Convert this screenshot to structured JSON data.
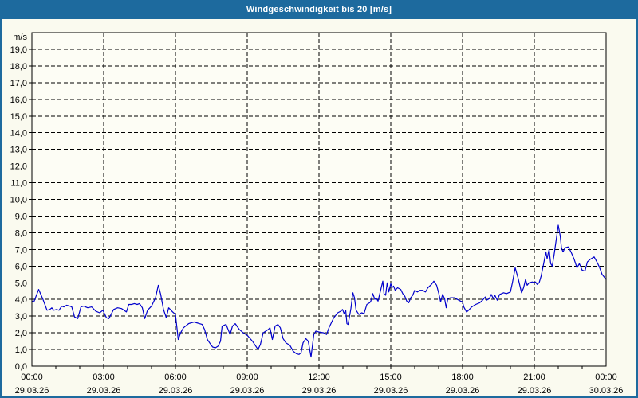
{
  "window": {
    "title": "Windgeschwindigkeit bis 20 [m/s]"
  },
  "colors": {
    "titlebar": "#1d6a9e",
    "frame": "#1d6a9e",
    "background": "#fafaef",
    "plot_background": "#fdfdf5",
    "line": "#0000cc",
    "grid": "#000000",
    "text": "#000000"
  },
  "chart_data": {
    "type": "line",
    "title": "Windgeschwindigkeit bis 20 [m/s]",
    "ylabel_unit": "m/s",
    "ylim": [
      0,
      20
    ],
    "grid": "dashed",
    "legend": "none",
    "ytick_labels": [
      "19,0",
      "18,0",
      "17,0",
      "16,0",
      "15,0",
      "14,0",
      "13,0",
      "12,0",
      "11,0",
      "10,0",
      "9,0",
      "8,0",
      "7,0",
      "6,0",
      "5,0",
      "4,0",
      "3,0",
      "2,0",
      "1,0",
      "0,0"
    ],
    "x_axis": {
      "tick_interval_hours": 3,
      "minor_tick_hours": 1,
      "labels": [
        {
          "time": "00:00",
          "date": "29.03.26"
        },
        {
          "time": "03:00",
          "date": "29.03.26"
        },
        {
          "time": "06:00",
          "date": "29.03.26"
        },
        {
          "time": "09:00",
          "date": "29.03.26"
        },
        {
          "time": "12:00",
          "date": "29.03.26"
        },
        {
          "time": "15:00",
          "date": "29.03.26"
        },
        {
          "time": "18:00",
          "date": "29.03.26"
        },
        {
          "time": "21:00",
          "date": "29.03.26"
        },
        {
          "time": "00:00",
          "date": "30.03.26"
        }
      ]
    },
    "series": [
      {
        "name": "Windgeschwindigkeit",
        "unit": "m/s",
        "points_minутes_note": "pairs of [minutes since 00:00, m/s]",
        "points": [
          [
            0,
            3.9
          ],
          [
            5,
            3.85
          ],
          [
            17,
            4.6
          ],
          [
            27,
            4.05
          ],
          [
            38,
            3.35
          ],
          [
            45,
            3.4
          ],
          [
            50,
            3.5
          ],
          [
            55,
            3.35
          ],
          [
            62,
            3.4
          ],
          [
            68,
            3.35
          ],
          [
            75,
            3.6
          ],
          [
            80,
            3.55
          ],
          [
            87,
            3.65
          ],
          [
            95,
            3.6
          ],
          [
            100,
            3.55
          ],
          [
            107,
            2.95
          ],
          [
            115,
            2.85
          ],
          [
            123,
            3.55
          ],
          [
            130,
            3.6
          ],
          [
            140,
            3.5
          ],
          [
            150,
            3.55
          ],
          [
            160,
            3.3
          ],
          [
            170,
            3.2
          ],
          [
            178,
            3.35
          ],
          [
            187,
            2.9
          ],
          [
            193,
            2.85
          ],
          [
            205,
            3.4
          ],
          [
            215,
            3.5
          ],
          [
            225,
            3.45
          ],
          [
            237,
            3.25
          ],
          [
            243,
            3.7
          ],
          [
            250,
            3.7
          ],
          [
            257,
            3.75
          ],
          [
            264,
            3.7
          ],
          [
            270,
            3.75
          ],
          [
            277,
            3.5
          ],
          [
            283,
            2.85
          ],
          [
            290,
            3.35
          ],
          [
            300,
            3.6
          ],
          [
            310,
            4.1
          ],
          [
            317,
            4.85
          ],
          [
            323,
            4.3
          ],
          [
            330,
            3.4
          ],
          [
            337,
            2.9
          ],
          [
            343,
            3.5
          ],
          [
            353,
            3.25
          ],
          [
            360,
            3.1
          ],
          [
            367,
            1.6
          ],
          [
            373,
            2.0
          ],
          [
            380,
            2.3
          ],
          [
            393,
            2.55
          ],
          [
            400,
            2.6
          ],
          [
            407,
            2.65
          ],
          [
            413,
            2.6
          ],
          [
            420,
            2.55
          ],
          [
            427,
            2.5
          ],
          [
            433,
            2.2
          ],
          [
            440,
            1.6
          ],
          [
            447,
            1.35
          ],
          [
            453,
            1.15
          ],
          [
            460,
            1.1
          ],
          [
            467,
            1.2
          ],
          [
            473,
            1.5
          ],
          [
            477,
            2.4
          ],
          [
            487,
            2.5
          ],
          [
            497,
            1.9
          ],
          [
            503,
            2.4
          ],
          [
            510,
            2.55
          ],
          [
            520,
            2.2
          ],
          [
            530,
            2.0
          ],
          [
            540,
            1.85
          ],
          [
            553,
            1.5
          ],
          [
            567,
            1.0
          ],
          [
            573,
            1.3
          ],
          [
            580,
            2.0
          ],
          [
            593,
            2.2
          ],
          [
            597,
            2.3
          ],
          [
            603,
            1.6
          ],
          [
            610,
            2.4
          ],
          [
            617,
            2.5
          ],
          [
            623,
            2.3
          ],
          [
            630,
            1.65
          ],
          [
            637,
            1.4
          ],
          [
            647,
            1.25
          ],
          [
            655,
            0.9
          ],
          [
            663,
            0.75
          ],
          [
            670,
            0.7
          ],
          [
            675,
            0.8
          ],
          [
            680,
            1.4
          ],
          [
            687,
            1.65
          ],
          [
            693,
            1.5
          ],
          [
            700,
            0.55
          ],
          [
            707,
            1.9
          ],
          [
            712,
            2.1
          ],
          [
            720,
            2.05
          ],
          [
            732,
            2.0
          ],
          [
            739,
            1.9
          ],
          [
            745,
            2.3
          ],
          [
            757,
            2.9
          ],
          [
            767,
            3.2
          ],
          [
            775,
            3.3
          ],
          [
            779,
            3.4
          ],
          [
            783,
            3.15
          ],
          [
            787,
            3.35
          ],
          [
            790,
            2.55
          ],
          [
            793,
            2.5
          ],
          [
            800,
            3.45
          ],
          [
            805,
            4.4
          ],
          [
            809,
            4.1
          ],
          [
            813,
            3.35
          ],
          [
            820,
            3.1
          ],
          [
            827,
            3.2
          ],
          [
            833,
            3.15
          ],
          [
            840,
            3.7
          ],
          [
            847,
            3.8
          ],
          [
            850,
            3.9
          ],
          [
            855,
            4.35
          ],
          [
            860,
            4.0
          ],
          [
            863,
            4.1
          ],
          [
            868,
            3.9
          ],
          [
            880,
            5.1
          ],
          [
            883,
            4.35
          ],
          [
            887,
            4.25
          ],
          [
            891,
            5.0
          ],
          [
            895,
            4.45
          ],
          [
            900,
            4.95
          ],
          [
            903,
            4.7
          ],
          [
            907,
            4.8
          ],
          [
            911,
            4.55
          ],
          [
            917,
            4.7
          ],
          [
            925,
            4.6
          ],
          [
            930,
            4.35
          ],
          [
            935,
            4.2
          ],
          [
            940,
            3.9
          ],
          [
            945,
            3.8
          ],
          [
            950,
            4.1
          ],
          [
            955,
            4.25
          ],
          [
            960,
            4.55
          ],
          [
            967,
            4.45
          ],
          [
            973,
            4.55
          ],
          [
            980,
            4.55
          ],
          [
            987,
            4.45
          ],
          [
            993,
            4.7
          ],
          [
            1002,
            4.9
          ],
          [
            1008,
            5.1
          ],
          [
            1015,
            4.85
          ],
          [
            1021,
            4.3
          ],
          [
            1025,
            3.85
          ],
          [
            1030,
            4.3
          ],
          [
            1035,
            4.05
          ],
          [
            1039,
            3.5
          ],
          [
            1043,
            4.05
          ],
          [
            1050,
            4.1
          ],
          [
            1060,
            4.1
          ],
          [
            1067,
            4.0
          ],
          [
            1075,
            3.9
          ],
          [
            1080,
            3.85
          ],
          [
            1083,
            3.55
          ],
          [
            1090,
            3.25
          ],
          [
            1093,
            3.3
          ],
          [
            1103,
            3.55
          ],
          [
            1113,
            3.7
          ],
          [
            1123,
            3.8
          ],
          [
            1130,
            3.95
          ],
          [
            1137,
            4.15
          ],
          [
            1140,
            3.95
          ],
          [
            1147,
            4.05
          ],
          [
            1152,
            4.3
          ],
          [
            1157,
            4.05
          ],
          [
            1161,
            4.25
          ],
          [
            1167,
            3.95
          ],
          [
            1173,
            4.3
          ],
          [
            1183,
            4.4
          ],
          [
            1190,
            4.35
          ],
          [
            1200,
            4.45
          ],
          [
            1205,
            5.0
          ],
          [
            1212,
            5.9
          ],
          [
            1219,
            5.3
          ],
          [
            1223,
            4.9
          ],
          [
            1228,
            4.4
          ],
          [
            1233,
            4.7
          ],
          [
            1238,
            5.2
          ],
          [
            1242,
            4.85
          ],
          [
            1247,
            5.0
          ],
          [
            1255,
            5.05
          ],
          [
            1260,
            5.0
          ],
          [
            1263,
            5.05
          ],
          [
            1267,
            4.9
          ],
          [
            1272,
            5.0
          ],
          [
            1277,
            5.4
          ],
          [
            1283,
            6.1
          ],
          [
            1289,
            6.85
          ],
          [
            1292,
            6.45
          ],
          [
            1297,
            7.0
          ],
          [
            1301,
            6.15
          ],
          [
            1305,
            6.0
          ],
          [
            1310,
            6.75
          ],
          [
            1315,
            7.6
          ],
          [
            1320,
            8.45
          ],
          [
            1325,
            7.8
          ],
          [
            1328,
            7.1
          ],
          [
            1332,
            6.85
          ],
          [
            1337,
            7.1
          ],
          [
            1345,
            7.15
          ],
          [
            1352,
            6.85
          ],
          [
            1360,
            6.4
          ],
          [
            1367,
            5.9
          ],
          [
            1373,
            6.15
          ],
          [
            1380,
            5.75
          ],
          [
            1387,
            5.7
          ],
          [
            1393,
            6.25
          ],
          [
            1400,
            6.4
          ],
          [
            1410,
            6.55
          ],
          [
            1417,
            6.25
          ],
          [
            1423,
            5.95
          ],
          [
            1430,
            5.5
          ],
          [
            1440,
            5.2
          ]
        ]
      }
    ]
  }
}
